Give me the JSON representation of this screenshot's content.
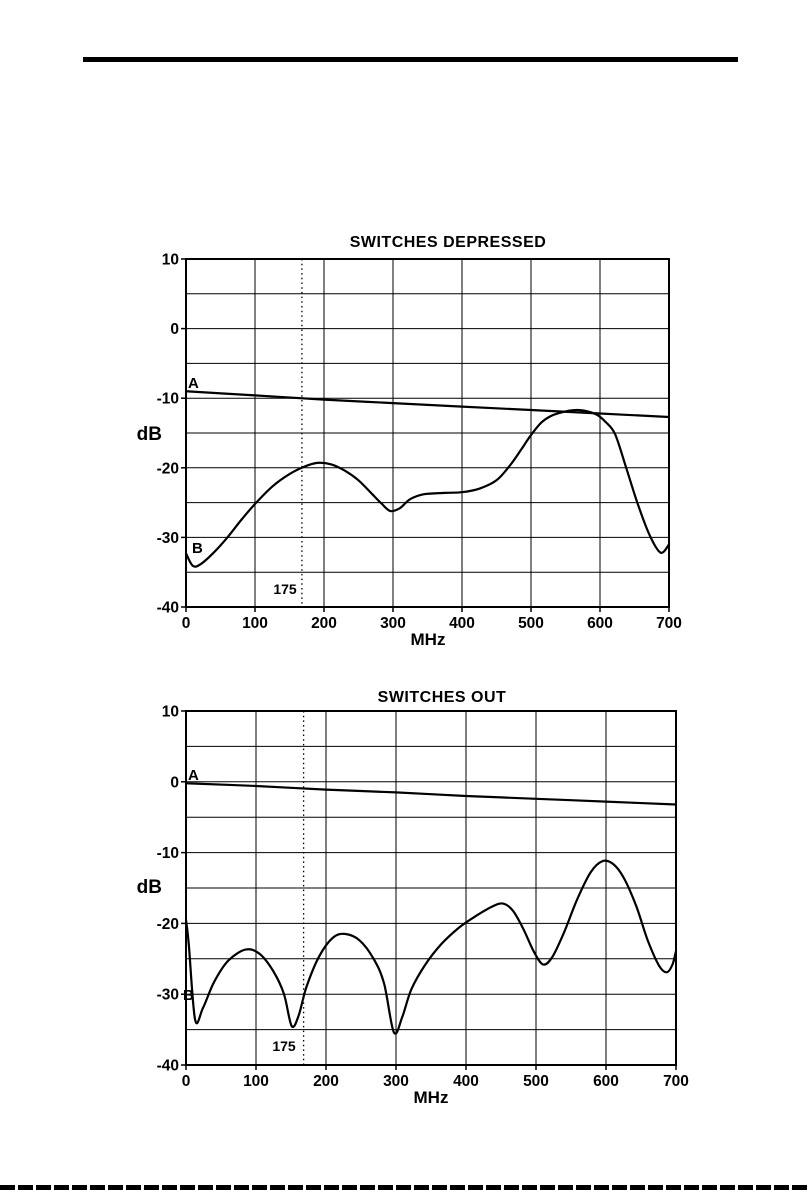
{
  "chart_data": [
    {
      "type": "line",
      "title": "SWITCHES DEPRESSED",
      "xlabel": "MHz",
      "ylabel": "dB",
      "xlim": [
        0,
        700
      ],
      "ylim": [
        -40,
        10
      ],
      "x_ticks": [
        0,
        100,
        200,
        300,
        400,
        500,
        600,
        700
      ],
      "y_ticks": [
        10,
        0,
        -10,
        -20,
        -30,
        -40
      ],
      "x_grid_step": 100,
      "y_grid_step": 5,
      "grid": true,
      "legend": "none",
      "marker_line": {
        "label": "175",
        "mhz": 168,
        "style": "dotted-vertical"
      },
      "series": [
        {
          "name": "A",
          "points": [
            [
              0,
              -9
            ],
            [
              100,
              -9.6
            ],
            [
              200,
              -10.2
            ],
            [
              300,
              -10.7
            ],
            [
              400,
              -11.2
            ],
            [
              500,
              -11.7
            ],
            [
              600,
              -12.2
            ],
            [
              700,
              -12.7
            ]
          ]
        },
        {
          "name": "B",
          "points": [
            [
              0,
              -32.3
            ],
            [
              10,
              -34.1
            ],
            [
              22,
              -33.8
            ],
            [
              40,
              -32.2
            ],
            [
              60,
              -30
            ],
            [
              80,
              -27.5
            ],
            [
              100,
              -25.2
            ],
            [
              125,
              -22.7
            ],
            [
              150,
              -20.9
            ],
            [
              170,
              -19.9
            ],
            [
              190,
              -19.3
            ],
            [
              210,
              -19.5
            ],
            [
              230,
              -20.4
            ],
            [
              250,
              -21.8
            ],
            [
              270,
              -23.8
            ],
            [
              283,
              -25.1
            ],
            [
              296,
              -26.2
            ],
            [
              310,
              -25.8
            ],
            [
              325,
              -24.5
            ],
            [
              345,
              -23.8
            ],
            [
              375,
              -23.6
            ],
            [
              400,
              -23.5
            ],
            [
              425,
              -23
            ],
            [
              450,
              -21.8
            ],
            [
              470,
              -19.6
            ],
            [
              485,
              -17.5
            ],
            [
              500,
              -15.3
            ],
            [
              515,
              -13.5
            ],
            [
              530,
              -12.5
            ],
            [
              550,
              -11.9
            ],
            [
              567,
              -11.7
            ],
            [
              582,
              -11.9
            ],
            [
              596,
              -12.4
            ],
            [
              608,
              -13.4
            ],
            [
              622,
              -15.2
            ],
            [
              638,
              -20
            ],
            [
              654,
              -25
            ],
            [
              672,
              -29.7
            ],
            [
              688,
              -32.2
            ],
            [
              700,
              -31
            ]
          ]
        }
      ]
    },
    {
      "type": "line",
      "title": "SWITCHES OUT",
      "xlabel": "MHz",
      "ylabel": "dB",
      "xlim": [
        0,
        700
      ],
      "ylim": [
        -40,
        10
      ],
      "x_ticks": [
        0,
        100,
        200,
        300,
        400,
        500,
        600,
        700
      ],
      "y_ticks": [
        10,
        0,
        -10,
        -20,
        -30,
        -40
      ],
      "x_grid_step": 100,
      "y_grid_step": 5,
      "grid": true,
      "legend": "none",
      "marker_line": {
        "label": "175",
        "mhz": 168,
        "style": "dotted-vertical"
      },
      "series": [
        {
          "name": "A",
          "points": [
            [
              0,
              -0.2
            ],
            [
              100,
              -0.6
            ],
            [
              200,
              -1.1
            ],
            [
              300,
              -1.5
            ],
            [
              400,
              -2
            ],
            [
              500,
              -2.4
            ],
            [
              600,
              -2.8
            ],
            [
              700,
              -3.2
            ]
          ]
        },
        {
          "name": "B",
          "points": [
            [
              0,
              -19.5
            ],
            [
              4,
              -23
            ],
            [
              13,
              -33.6
            ],
            [
              24,
              -32
            ],
            [
              40,
              -28.3
            ],
            [
              60,
              -25.3
            ],
            [
              85,
              -23.7
            ],
            [
              105,
              -24.3
            ],
            [
              125,
              -26.8
            ],
            [
              140,
              -30
            ],
            [
              151,
              -34.5
            ],
            [
              161,
              -33
            ],
            [
              172,
              -29
            ],
            [
              190,
              -24.7
            ],
            [
              210,
              -22
            ],
            [
              228,
              -21.5
            ],
            [
              248,
              -22.4
            ],
            [
              268,
              -25
            ],
            [
              283,
              -28.5
            ],
            [
              297,
              -35.4
            ],
            [
              309,
              -33.2
            ],
            [
              322,
              -29.3
            ],
            [
              342,
              -25.8
            ],
            [
              365,
              -22.9
            ],
            [
              390,
              -20.6
            ],
            [
              415,
              -18.9
            ],
            [
              438,
              -17.6
            ],
            [
              453,
              -17.2
            ],
            [
              467,
              -18.2
            ],
            [
              482,
              -20.8
            ],
            [
              497,
              -24
            ],
            [
              510,
              -25.8
            ],
            [
              523,
              -24.8
            ],
            [
              540,
              -21.3
            ],
            [
              558,
              -16.8
            ],
            [
              578,
              -12.8
            ],
            [
              595,
              -11.2
            ],
            [
              610,
              -11.6
            ],
            [
              625,
              -13.5
            ],
            [
              643,
              -17.5
            ],
            [
              660,
              -22.5
            ],
            [
              676,
              -26
            ],
            [
              687,
              -26.9
            ],
            [
              695,
              -25.8
            ],
            [
              700,
              -23.9
            ]
          ]
        }
      ]
    }
  ]
}
